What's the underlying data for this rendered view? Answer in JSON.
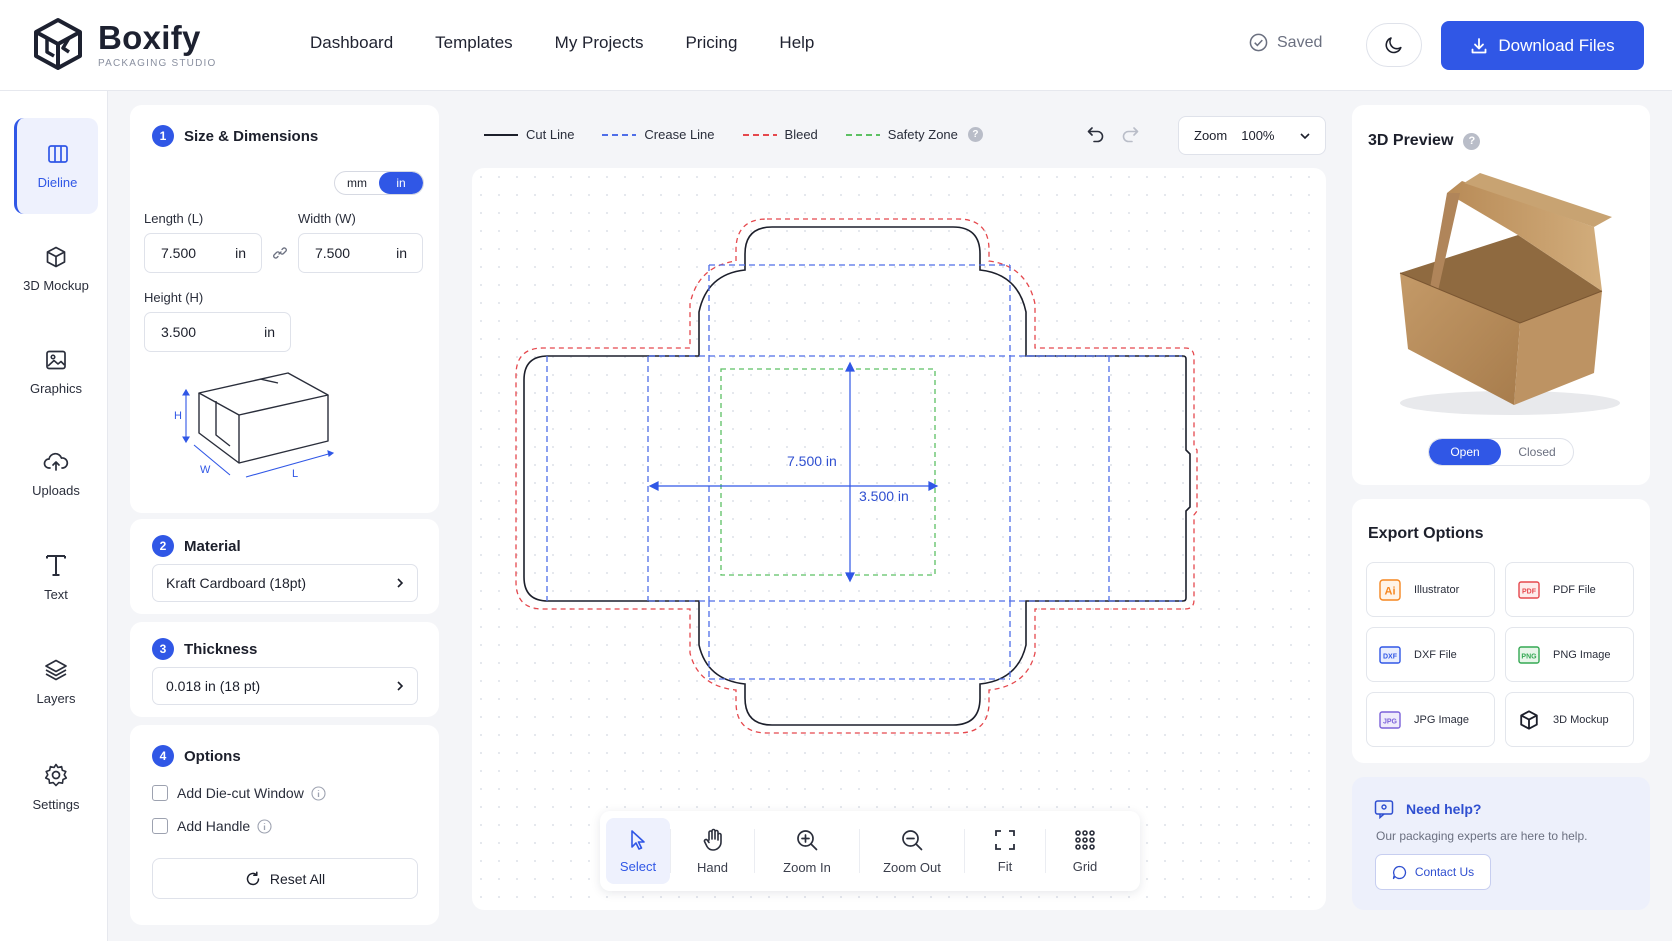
{
  "header": {
    "brand": "Boxify",
    "brand_sub": "PACKAGING STUDIO",
    "nav": [
      "Dashboard",
      "Templates",
      "My Projects",
      "Pricing",
      "Help"
    ],
    "saved_label": "Saved",
    "download_label": "Download Files"
  },
  "rail": {
    "items": [
      {
        "label": "Dieline",
        "icon": "dieline-icon"
      },
      {
        "label": "3D Mockup",
        "icon": "cube-icon"
      },
      {
        "label": "Graphics",
        "icon": "image-icon"
      },
      {
        "label": "Uploads",
        "icon": "cloud-upload-icon"
      },
      {
        "label": "Text",
        "icon": "text-icon"
      },
      {
        "label": "Layers",
        "icon": "layers-icon"
      },
      {
        "label": "Settings",
        "icon": "gear-icon"
      }
    ]
  },
  "size": {
    "step": "1",
    "title": "Size & Dimensions",
    "units": [
      "mm",
      "in"
    ],
    "active_unit": "in",
    "length_label": "Length (L)",
    "length_value": "7.500",
    "width_label": "Width (W)",
    "width_value": "7.500",
    "height_label": "Height (H)",
    "height_value": "3.500",
    "unit": "in",
    "diagram": {
      "h": "H",
      "w": "W",
      "l": "L"
    }
  },
  "material": {
    "step": "2",
    "title": "Material",
    "value": "Kraft Cardboard (18pt)"
  },
  "thickness": {
    "step": "3",
    "title": "Thickness",
    "value": "0.018 in (18 pt)"
  },
  "options": {
    "step": "4",
    "title": "Options",
    "items": [
      "Add Die-cut Window",
      "Add Handle"
    ],
    "reset_label": "Reset All"
  },
  "legend": {
    "items": [
      {
        "label": "Cut Line",
        "color": "#1c1f2b"
      },
      {
        "label": "Crease Line",
        "color": "#4f6ee8"
      },
      {
        "label": "Bleed",
        "color": "#e5484d"
      },
      {
        "label": "Safety Zone",
        "color": "#5cc063"
      }
    ]
  },
  "zoom": {
    "label": "Zoom",
    "value": "100%"
  },
  "dieline": {
    "width_label": "7.500 in",
    "height_label": "3.500 in"
  },
  "tools": [
    "Select",
    "Hand",
    "Zoom In",
    "Zoom Out",
    "Fit",
    "Grid"
  ],
  "active_tool": "Select",
  "preview": {
    "title": "3D Preview",
    "states": [
      "Open",
      "Closed"
    ],
    "active_state": "Open"
  },
  "export": {
    "title": "Export Options",
    "items": [
      {
        "label": "Illustrator",
        "badge": "Ai",
        "color": "#f5861f"
      },
      {
        "label": "PDF File",
        "badge": "PDF",
        "color": "#e5484d"
      },
      {
        "label": "DXF File",
        "badge": "DXF",
        "color": "#3057e6"
      },
      {
        "label": "PNG Image",
        "badge": "PNG",
        "color": "#34a853"
      },
      {
        "label": "JPG Image",
        "badge": "JPG",
        "color": "#7b61d9"
      },
      {
        "label": "3D Mockup",
        "badge": "",
        "color": "#1c1f2b"
      }
    ]
  },
  "help": {
    "title": "Need help?",
    "text": "Our packaging experts are here to help.",
    "contact_label": "Contact Us"
  },
  "colors": {
    "accent": "#3057e6"
  }
}
